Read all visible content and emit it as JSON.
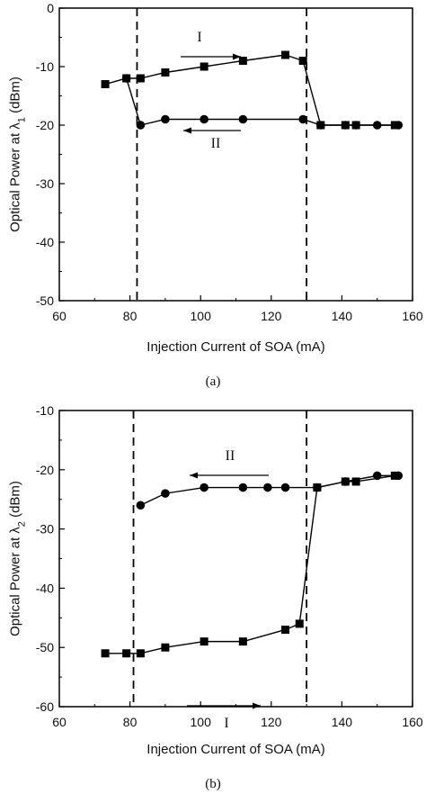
{
  "chart_data": [
    {
      "type": "line",
      "caption": "(a)",
      "xlabel": "Injection Current of SOA (mA)",
      "ylabel": "Optical Power at λ",
      "ylabel_sub": "1",
      "ylabel_unit": " (dBm)",
      "xlim": [
        60,
        160
      ],
      "ylim": [
        -50,
        0
      ],
      "xticks": [
        60,
        80,
        100,
        120,
        140,
        160
      ],
      "yticks": [
        0,
        -10,
        -20,
        -30,
        -40,
        -50
      ],
      "vlines": [
        82,
        130
      ],
      "series": [
        {
          "name": "I",
          "marker": "square",
          "x": [
            73,
            79,
            83,
            90,
            101,
            112,
            124,
            129,
            134,
            141,
            144,
            155
          ],
          "y": [
            -13,
            -12,
            -12,
            -11,
            -10,
            -9,
            -8,
            -9,
            -20,
            -20,
            -20,
            -20
          ]
        },
        {
          "name": "II",
          "marker": "circle",
          "x": [
            156,
            150,
            144,
            141,
            134,
            129,
            112,
            101,
            90,
            83,
            79
          ],
          "y": [
            -20,
            -20,
            -20,
            -20,
            -20,
            -19,
            -19,
            -19,
            -19,
            -20,
            -12
          ]
        }
      ],
      "annotations": [
        {
          "text": "I",
          "arrow": "right"
        },
        {
          "text": "II",
          "arrow": "left"
        }
      ]
    },
    {
      "type": "line",
      "caption": "(b)",
      "xlabel": "Injection Current of SOA (mA)",
      "ylabel": "Optical Power at λ",
      "ylabel_sub": "2",
      "ylabel_unit": " (dBm)",
      "xlim": [
        60,
        160
      ],
      "ylim": [
        -60,
        -10
      ],
      "xticks": [
        60,
        80,
        100,
        120,
        140,
        160
      ],
      "yticks": [
        -10,
        -20,
        -30,
        -40,
        -50,
        -60
      ],
      "vlines": [
        81,
        130
      ],
      "series": [
        {
          "name": "I",
          "marker": "square",
          "x": [
            73,
            79,
            83,
            90,
            101,
            112,
            124,
            128,
            133,
            141,
            144,
            155
          ],
          "y": [
            -51,
            -51,
            -51,
            -50,
            -49,
            -49,
            -47,
            -46,
            -23,
            -22,
            -22,
            -21
          ]
        },
        {
          "name": "II",
          "marker": "circle",
          "x": [
            156,
            150,
            141,
            133,
            124,
            119,
            112,
            101,
            90,
            83
          ],
          "y": [
            -21,
            -21,
            -22,
            -23,
            -23,
            -23,
            -23,
            -23,
            -24,
            -26
          ]
        }
      ],
      "annotations": [
        {
          "text": "II",
          "arrow": "left"
        },
        {
          "text": "I",
          "arrow": "right"
        }
      ]
    }
  ]
}
